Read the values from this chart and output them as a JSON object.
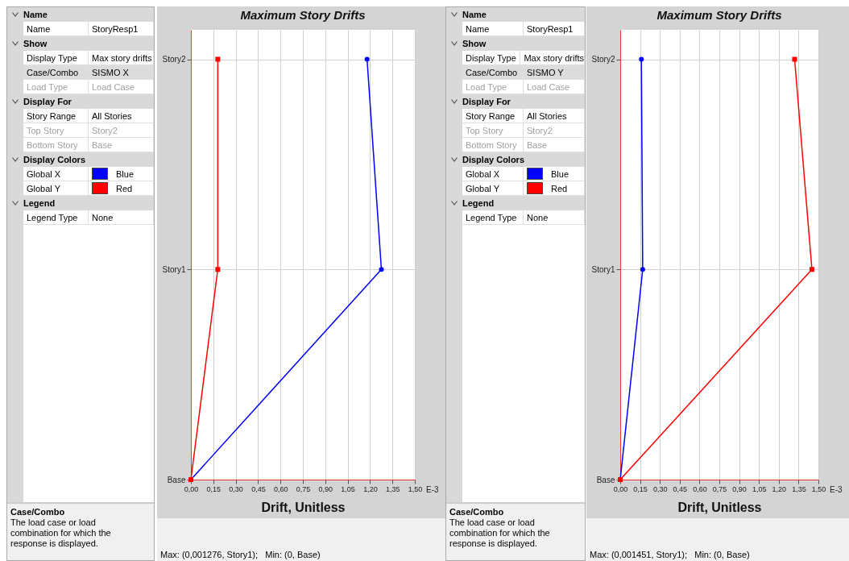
{
  "chart_data": [
    {
      "type": "other",
      "annotations": [
        "Name",
        "Name",
        "StoryResp1",
        "Show",
        "Display Type",
        "Max story drifts",
        "Case/Combo",
        "SISMO X",
        "Load Type",
        "Load Case",
        "Display For",
        "Story Range",
        "All Stories",
        "Top Story",
        "Story2",
        "Bottom Story",
        "Base",
        "Display Colors",
        "Global X",
        "Blue",
        "Global Y",
        "Red",
        "Legend",
        "Legend Type",
        "None",
        "Case/Combo",
        "The load case or load combination for which the response is displayed."
      ]
    },
    {
      "type": "line",
      "title": "Maximum Story Drifts",
      "xlabel": "Drift, Unitless",
      "orientation": "horizontal",
      "categories": [
        "Story2",
        "Story1",
        "Base"
      ],
      "series": [
        {
          "color": "#0000ff",
          "marker": "circle",
          "values": [
            1.18,
            1.276,
            0
          ]
        },
        {
          "color": "#ff0000",
          "marker": "square",
          "values": [
            0.18,
            0.18,
            0
          ]
        }
      ],
      "xlim": [
        0,
        1.5
      ],
      "xticks": [
        {
          "value": 0,
          "label": "0,00"
        },
        {
          "value": 0.15,
          "label": "0,15"
        },
        {
          "value": 0.3,
          "label": "0,30"
        },
        {
          "value": 0.45,
          "label": "0,45"
        },
        {
          "value": 0.6,
          "label": "0,60"
        },
        {
          "value": 0.75,
          "label": "0,75"
        },
        {
          "value": 0.9,
          "label": "0,90"
        },
        {
          "value": 1.05,
          "label": "1,05"
        },
        {
          "value": 1.2,
          "label": "1,20"
        },
        {
          "value": 1.35,
          "label": "1,35"
        },
        {
          "value": 1.5,
          "label": "1,50"
        }
      ],
      "grid": true,
      "annotations": [
        "E-3",
        "Max: (0,001276, Story1);   Min: (0, Base)"
      ]
    },
    {
      "type": "other",
      "annotations": [
        "Name",
        "Name",
        "StoryResp1",
        "Show",
        "Display Type",
        "Max story drifts",
        "Case/Combo",
        "SISMO Y",
        "Load Type",
        "Load Case",
        "Display For",
        "Story Range",
        "All Stories",
        "Top Story",
        "Story2",
        "Bottom Story",
        "Base",
        "Display Colors",
        "Global X",
        "Blue",
        "Global Y",
        "Red",
        "Legend",
        "Legend Type",
        "None",
        "Case/Combo",
        "The load case or load combination for which the response is displayed."
      ]
    },
    {
      "type": "line",
      "title": "Maximum Story Drifts",
      "xlabel": "Drift, Unitless",
      "orientation": "horizontal",
      "categories": [
        "Story2",
        "Story1",
        "Base"
      ],
      "series": [
        {
          "color": "#0000ff",
          "marker": "circle",
          "values": [
            0.16,
            0.17,
            0
          ]
        },
        {
          "color": "#ff0000",
          "marker": "square",
          "values": [
            1.32,
            1.451,
            0
          ]
        }
      ],
      "xlim": [
        0,
        1.5
      ],
      "xticks": [
        {
          "value": 0,
          "label": "0,00"
        },
        {
          "value": 0.15,
          "label": "0,15"
        },
        {
          "value": 0.3,
          "label": "0,30"
        },
        {
          "value": 0.45,
          "label": "0,45"
        },
        {
          "value": 0.6,
          "label": "0,60"
        },
        {
          "value": 0.75,
          "label": "0,75"
        },
        {
          "value": 0.9,
          "label": "0,90"
        },
        {
          "value": 1.05,
          "label": "1,05"
        },
        {
          "value": 1.2,
          "label": "1,20"
        },
        {
          "value": 1.35,
          "label": "1,35"
        },
        {
          "value": 1.5,
          "label": "1,50"
        }
      ],
      "grid": true,
      "annotations": [
        "E-3",
        "Max: (0,001451, Story1);   Min: (0, Base)"
      ]
    }
  ]
}
